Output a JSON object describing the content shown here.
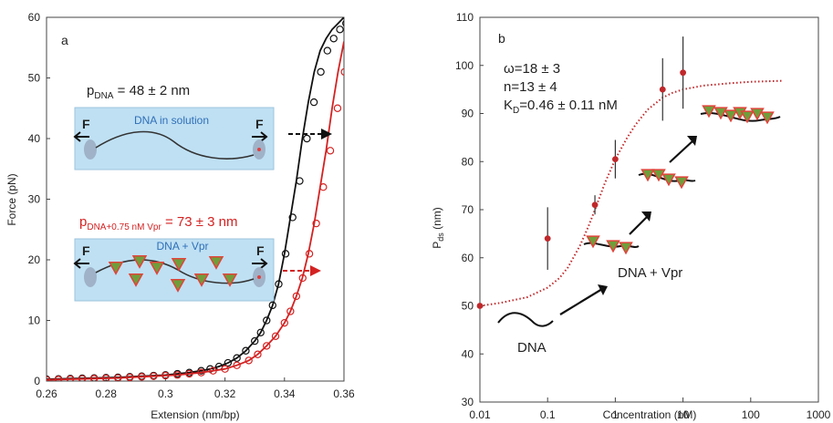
{
  "chart_data": [
    {
      "panel": "a",
      "type": "scatter",
      "xlabel": "Extension (nm/bp)",
      "ylabel": "Force (pN)",
      "xlim": [
        0.26,
        0.36
      ],
      "ylim": [
        0,
        60
      ],
      "xticks": [
        "0.26",
        "0.28",
        "0.3",
        "0.32",
        "0.34",
        "0.36"
      ],
      "yticks": [
        "0",
        "10",
        "20",
        "30",
        "40",
        "50",
        "60"
      ],
      "annotations": {
        "p_dna_main": "p",
        "p_dna_sub": "DNA",
        "p_dna_value": " = 48 ± 2 nm",
        "p_vpr_main": "p",
        "p_vpr_sub": "DNA+0.75 nM Vpr",
        "p_vpr_value": " = 73 ± 3 nm",
        "box1_title": "DNA in solution",
        "box2_title": "DNA + Vpr",
        "force_label": "F"
      },
      "colors": {
        "dna": "#111111",
        "vpr": "#d42222",
        "box_fill": "#bfe0f3",
        "box_title": "#2f6fb8",
        "triangle_fill": "#6f9e3a",
        "triangle_stroke": "#e0443a"
      },
      "series": [
        {
          "color_key": "dna",
          "x": [
            0.26,
            0.264,
            0.268,
            0.272,
            0.276,
            0.28,
            0.284,
            0.288,
            0.292,
            0.296,
            0.3,
            0.304,
            0.308,
            0.312,
            0.315,
            0.318,
            0.321,
            0.324,
            0.327,
            0.33,
            0.332,
            0.334,
            0.336,
            0.338,
            0.34,
            0.342,
            0.344,
            0.346,
            0.348,
            0.35,
            0.352,
            0.354,
            0.356,
            0.358,
            0.36
          ],
          "y": [
            0.3,
            0.35,
            0.4,
            0.45,
            0.5,
            0.55,
            0.6,
            0.7,
            0.8,
            0.9,
            1.0,
            1.2,
            1.4,
            1.7,
            2.0,
            2.4,
            3.0,
            3.8,
            5.0,
            6.6,
            8.0,
            10.0,
            12.5,
            16.0,
            21.0,
            27.0,
            33.0,
            40.0,
            46.0,
            51.0,
            54.5,
            56.5,
            58.0,
            59.0,
            60.0
          ]
        },
        {
          "color_key": "vpr",
          "x": [
            0.26,
            0.264,
            0.268,
            0.272,
            0.276,
            0.28,
            0.284,
            0.288,
            0.292,
            0.296,
            0.3,
            0.304,
            0.308,
            0.312,
            0.316,
            0.32,
            0.324,
            0.328,
            0.331,
            0.334,
            0.337,
            0.34,
            0.342,
            0.344,
            0.346,
            0.348,
            0.35,
            0.352,
            0.354,
            0.356,
            0.358,
            0.36
          ],
          "y": [
            0.2,
            0.25,
            0.3,
            0.35,
            0.4,
            0.45,
            0.5,
            0.6,
            0.7,
            0.8,
            0.9,
            1.0,
            1.2,
            1.4,
            1.7,
            2.0,
            2.6,
            3.4,
            4.4,
            5.8,
            7.4,
            9.6,
            11.5,
            14.0,
            17.0,
            21.0,
            26.0,
            32.0,
            38.0,
            45.0,
            51.0,
            56.0
          ]
        }
      ]
    },
    {
      "panel": "b",
      "type": "scatter",
      "xscale": "log",
      "xlabel": "Concentration (nM)",
      "ylabel_main": "P",
      "ylabel_sub": "ds",
      "ylabel_unit": " (nm)",
      "xlim": [
        0.01,
        1000
      ],
      "ylim": [
        30,
        110
      ],
      "xticks": [
        {
          "v": 0.01,
          "label": "0.01"
        },
        {
          "v": 0.1,
          "label": "0.1"
        },
        {
          "v": 1,
          "label": "1"
        },
        {
          "v": 10,
          "label": "10"
        },
        {
          "v": 100,
          "label": "100"
        },
        {
          "v": 1000,
          "label": "1000"
        }
      ],
      "yticks": [
        "30",
        "40",
        "50",
        "60",
        "70",
        "80",
        "90",
        "100",
        "110"
      ],
      "annotations": {
        "omega": "ω=18 ± 3",
        "n": "n=13 ± 4",
        "kd_main": "K",
        "kd_sub": "D",
        "kd_value": "=0.46 ± 0.11 nM",
        "dna_label": "DNA",
        "dna_vpr_label": "DNA + Vpr"
      },
      "colors": {
        "points": "#c0282b",
        "fit": "#c0282b",
        "error": "#333333"
      },
      "points": [
        {
          "x": 0.01,
          "y": 50,
          "err": 0
        },
        {
          "x": 0.1,
          "y": 64,
          "err": 6.5
        },
        {
          "x": 0.5,
          "y": 71,
          "err": 2
        },
        {
          "x": 1,
          "y": 80.5,
          "err": 4
        },
        {
          "x": 5,
          "y": 95,
          "err": 6.5
        },
        {
          "x": 10,
          "y": 98.5,
          "err": 7.5
        }
      ],
      "fit": {
        "x": [
          0.01,
          0.02,
          0.05,
          0.1,
          0.15,
          0.2,
          0.3,
          0.4,
          0.5,
          0.7,
          1,
          1.5,
          2,
          3,
          5,
          7,
          10,
          20,
          50,
          100,
          300
        ],
        "y": [
          50,
          50.6,
          51.8,
          53.8,
          55.8,
          58.0,
          62.5,
          66.5,
          70.0,
          75.5,
          80.5,
          85.0,
          87.7,
          90.8,
          93.3,
          94.3,
          95.0,
          95.8,
          96.3,
          96.6,
          96.8
        ]
      }
    }
  ]
}
